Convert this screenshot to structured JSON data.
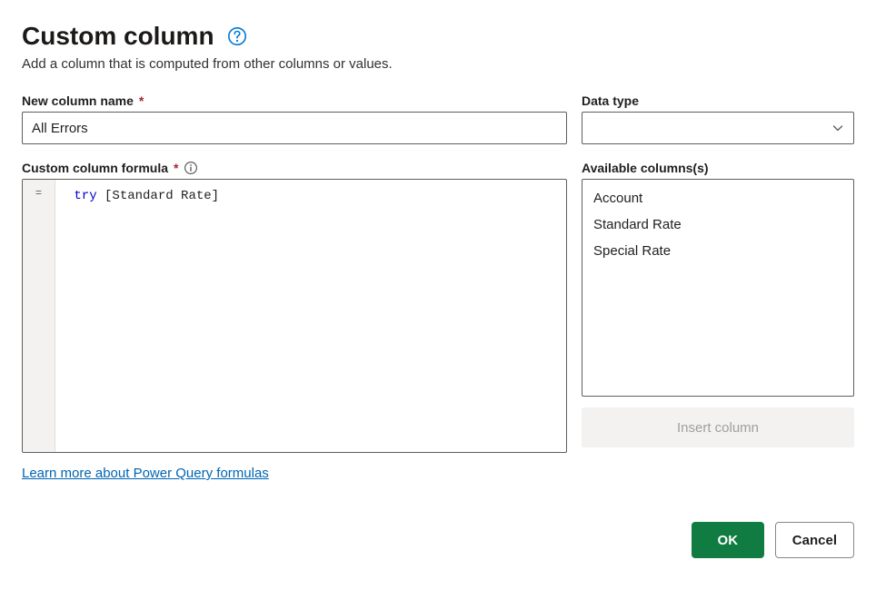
{
  "header": {
    "title": "Custom column",
    "subtitle": "Add a column that is computed from other columns or values."
  },
  "labels": {
    "new_column_name": "New column name",
    "data_type": "Data type",
    "formula": "Custom column formula",
    "available": "Available columns(s)"
  },
  "new_column_name_value": "All Errors",
  "data_type_value": "",
  "formula": {
    "gutter": "=",
    "keyword": "try",
    "rest": " [Standard Rate]"
  },
  "available_columns": [
    "Account",
    "Standard Rate",
    "Special Rate"
  ],
  "insert_button_label": "Insert column",
  "link_text": "Learn more about Power Query formulas",
  "buttons": {
    "ok": "OK",
    "cancel": "Cancel"
  },
  "colors": {
    "primary": "#107c41",
    "help_icon": "#0078d4",
    "required": "#a4262c"
  }
}
